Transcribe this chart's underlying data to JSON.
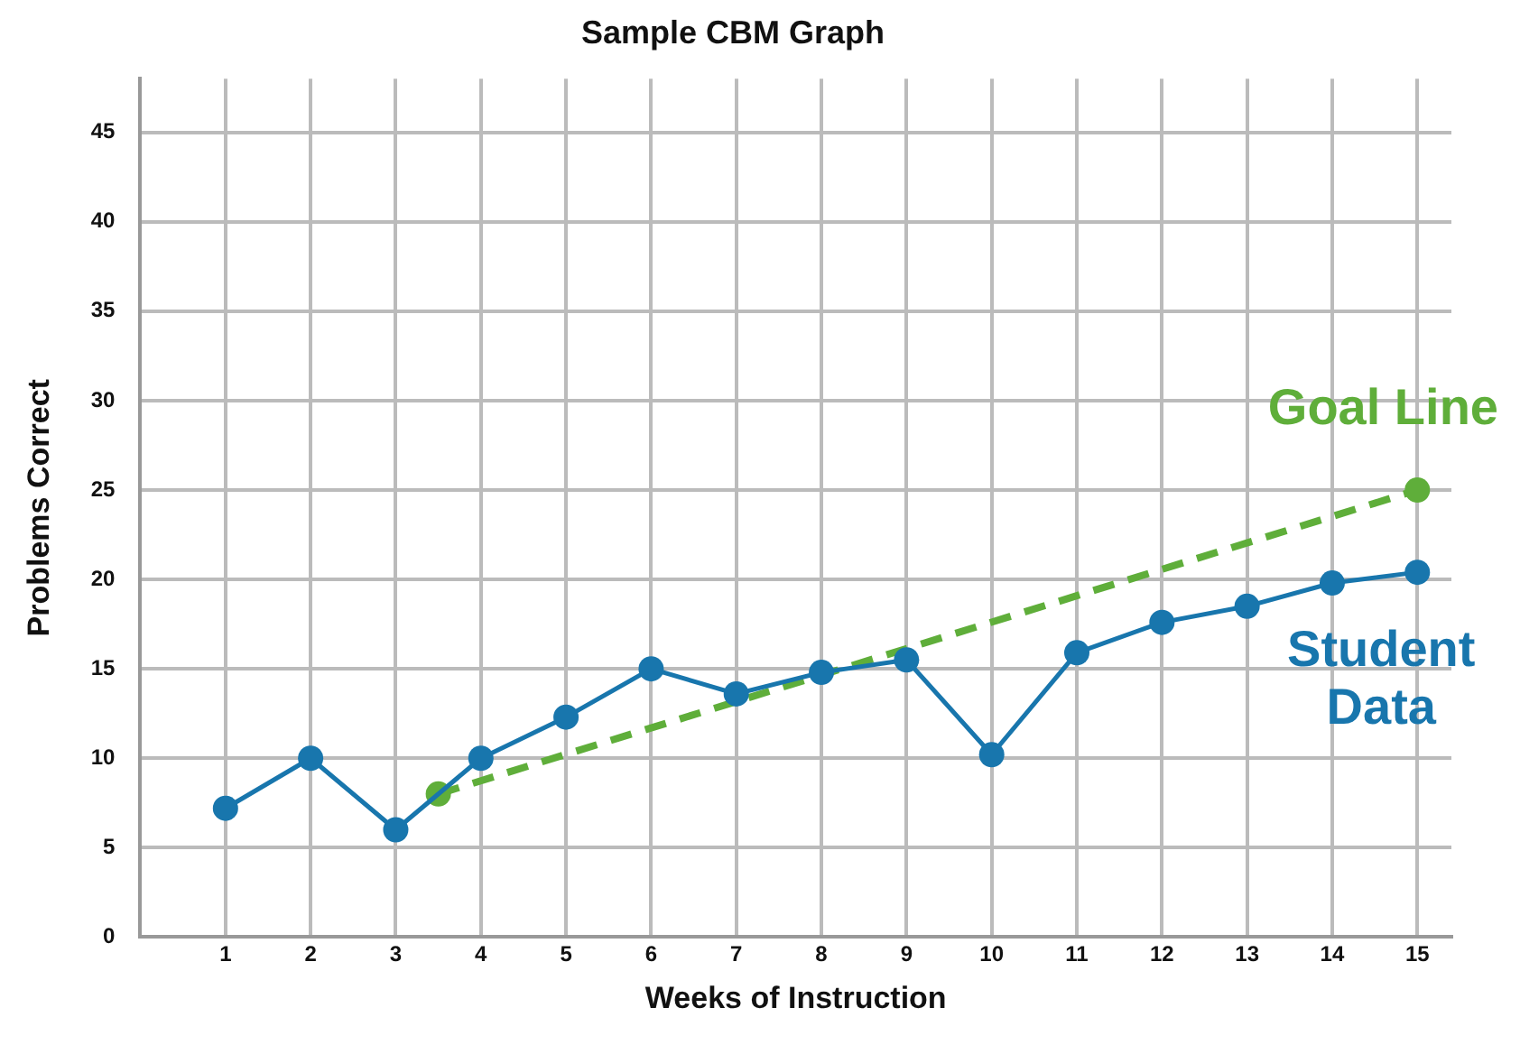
{
  "chart_data": {
    "type": "line",
    "title": "Sample CBM Graph",
    "xlabel": "Weeks of Instruction",
    "ylabel": "Problems Correct",
    "xlim": [
      0,
      15.4
    ],
    "xticks": [
      {
        "value": 0,
        "label": null
      },
      1,
      2,
      3,
      4,
      5,
      6,
      7,
      8,
      9,
      10,
      11,
      12,
      13,
      14,
      15
    ],
    "ylim": [
      0,
      48
    ],
    "yticks": [
      0,
      5,
      10,
      15,
      20,
      25,
      30,
      35,
      40,
      45
    ],
    "grid": true,
    "legend": false,
    "marker": "circle",
    "series": [
      {
        "name": "Student Data",
        "color": "#1876ad",
        "line_style": "solid",
        "x": [
          1,
          2,
          3,
          4,
          5,
          6,
          7,
          8,
          9,
          10,
          11,
          12,
          13,
          14,
          15
        ],
        "values": [
          7.2,
          10,
          6,
          10,
          12.3,
          15,
          13.6,
          14.8,
          15.5,
          10.2,
          15.9,
          17.6,
          18.5,
          19.8,
          20.4
        ]
      },
      {
        "name": "Goal Line",
        "color": "#5fae3a",
        "line_style": "dashed",
        "x": [
          3.5,
          15
        ],
        "values": [
          8,
          25
        ]
      }
    ]
  }
}
